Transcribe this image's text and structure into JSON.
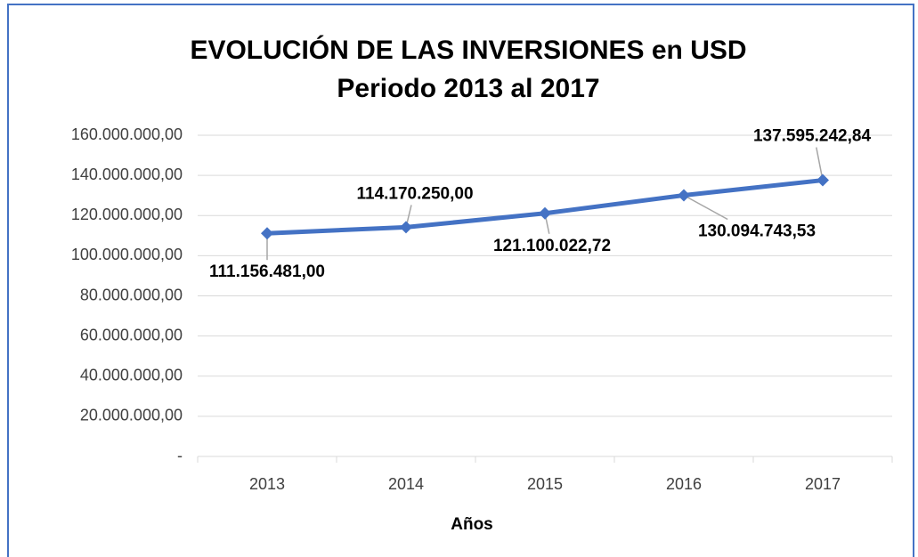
{
  "chart_data": {
    "type": "line",
    "title": "EVOLUCIÓN DE LAS INVERSIONES en USD",
    "subtitle": "Periodo 2013 al 2017",
    "x_label": "Años",
    "categories": [
      "2013",
      "2014",
      "2015",
      "2016",
      "2017"
    ],
    "series": [
      {
        "name": "Inversiones",
        "color": "#4472c4",
        "values": [
          111156481,
          114170250,
          121100022.72,
          130094743.53,
          137595242.84
        ],
        "value_labels": [
          "111.156.481,00",
          "114.170.250,00",
          "121.100.022,72",
          "130.094.743,53",
          "137.595.242,84"
        ]
      }
    ],
    "ylim": [
      0,
      160000000
    ],
    "yticks": [
      {
        "value": 0,
        "label": "-"
      },
      {
        "value": 20000000,
        "label": "20.000.000,00"
      },
      {
        "value": 40000000,
        "label": "40.000.000,00"
      },
      {
        "value": 60000000,
        "label": "60.000.000,00"
      },
      {
        "value": 80000000,
        "label": "80.000.000,00"
      },
      {
        "value": 100000000,
        "label": "100.000.000,00"
      },
      {
        "value": 120000000,
        "label": "120.000.000,00"
      },
      {
        "value": 140000000,
        "label": "140.000.000,00"
      },
      {
        "value": 160000000,
        "label": "160.000.000,00"
      }
    ],
    "grid": true
  }
}
